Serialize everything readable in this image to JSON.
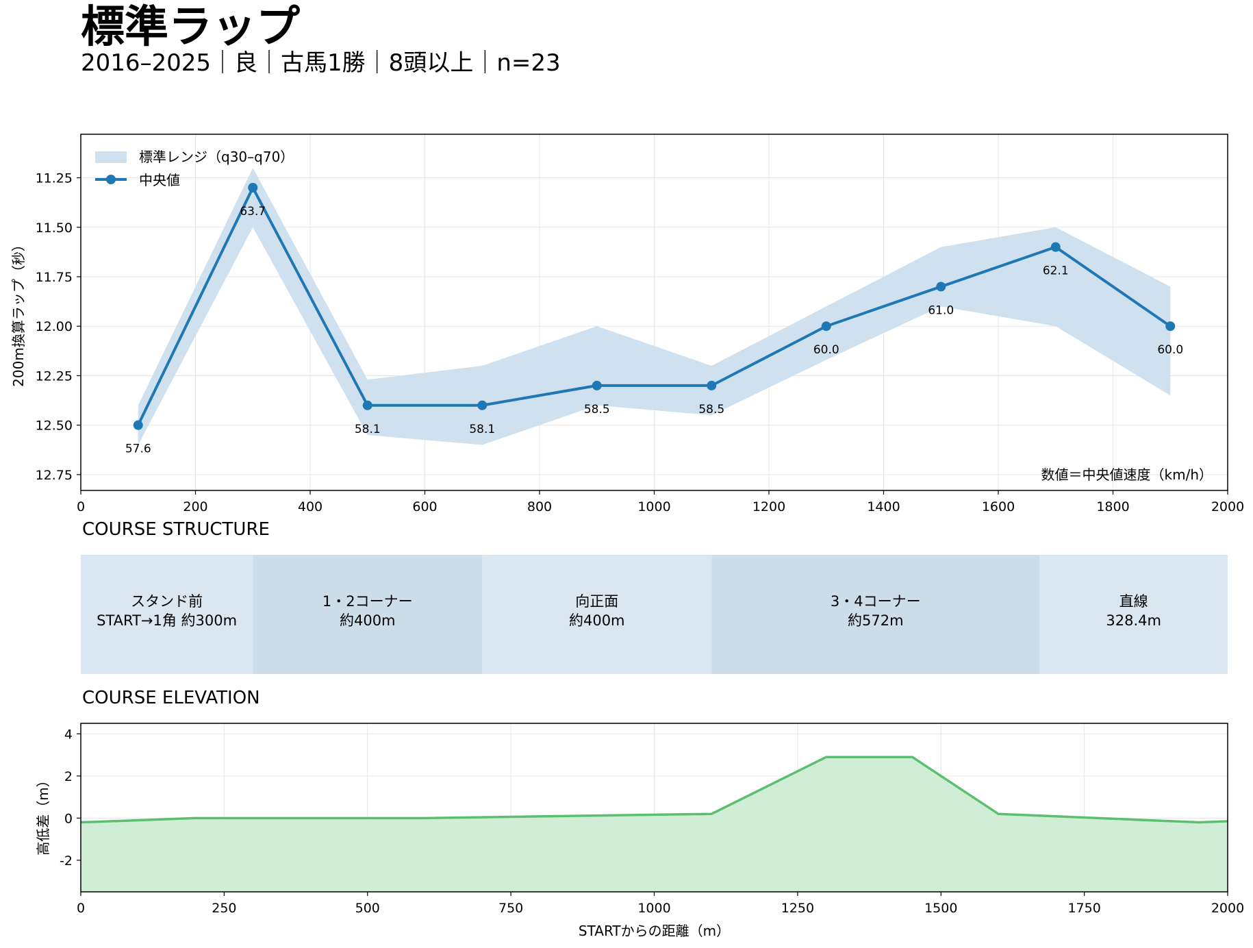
{
  "title": "標準ラップ",
  "subtitle": "2016–2025｜良｜古馬1勝｜8頭以上｜n=23",
  "chart_data": [
    {
      "type": "line",
      "xlim": [
        0,
        2000
      ],
      "ylim": [
        12.83,
        11.03
      ],
      "y_inverted": true,
      "xticks": [
        0,
        200,
        400,
        600,
        800,
        1000,
        1200,
        1400,
        1600,
        1800,
        2000
      ],
      "yticks": [
        11.25,
        11.5,
        11.75,
        12.0,
        12.25,
        12.5,
        12.75
      ],
      "ytick_labels": [
        "11.25",
        "11.50",
        "11.75",
        "12.00",
        "12.25",
        "12.50",
        "12.75"
      ],
      "ylabel": "200m換算ラップ（秒）",
      "xlabel": "",
      "grid": true,
      "legend": {
        "position": "top-left",
        "band_label": "標準レンジ（q30–q70）",
        "line_label": "中央値"
      },
      "band_color": "#cfe0ee",
      "line_color": "#1f77b4",
      "x": [
        100,
        300,
        500,
        700,
        900,
        1100,
        1300,
        1500,
        1700,
        1900
      ],
      "series": [
        {
          "name": "中央値",
          "values": [
            12.5,
            11.3,
            12.4,
            12.4,
            12.3,
            12.3,
            12.0,
            11.8,
            11.6,
            12.0
          ]
        },
        {
          "name": "q30",
          "values": [
            12.4,
            11.2,
            12.27,
            12.2,
            12.0,
            12.2,
            11.9,
            11.6,
            11.5,
            11.8
          ]
        },
        {
          "name": "q70",
          "values": [
            12.6,
            11.5,
            12.55,
            12.6,
            12.4,
            12.45,
            12.17,
            11.9,
            12.0,
            12.35
          ]
        }
      ],
      "data_labels": [
        "57.6",
        "63.7",
        "58.1",
        "58.1",
        "58.5",
        "58.5",
        "60.0",
        "61.0",
        "62.1",
        "60.0"
      ],
      "note": "数値＝中央値速度（km/h）"
    },
    {
      "type": "segments",
      "title": "COURSE STRUCTURE",
      "xlim": [
        0,
        2000
      ],
      "segments": [
        {
          "start": 0,
          "end": 300,
          "label": "スタンド前",
          "sub": "START→1角 約300m",
          "color": "#dae6f0"
        },
        {
          "start": 300,
          "end": 700,
          "label": "1・2コーナー",
          "sub": "約400m",
          "color": "#cddeeb"
        },
        {
          "start": 700,
          "end": 1100,
          "label": "向正面",
          "sub": "約400m",
          "color": "#dae6f0"
        },
        {
          "start": 1100,
          "end": 1672,
          "label": "3・4コーナー",
          "sub": "約572m",
          "color": "#cddeeb"
        },
        {
          "start": 1672,
          "end": 2000,
          "label": "直線",
          "sub": "328.4m",
          "color": "#dae6f0"
        }
      ]
    },
    {
      "type": "area",
      "title": "COURSE ELEVATION",
      "xlim": [
        0,
        2000
      ],
      "ylim": [
        -3.5,
        4.5
      ],
      "xticks": [
        0,
        250,
        500,
        750,
        1000,
        1250,
        1500,
        1750,
        2000
      ],
      "yticks": [
        4,
        2,
        0,
        -2
      ],
      "ytick_labels": [
        "4",
        "2",
        "0",
        "-2"
      ],
      "xlabel": "STARTからの距離（m）",
      "ylabel": "高低差（m）",
      "grid": true,
      "line_color": "#5cbf70",
      "fill_color": "#d0eed6",
      "x": [
        0,
        200,
        600,
        1100,
        1300,
        1450,
        1600,
        1950,
        2000
      ],
      "values": [
        -0.2,
        0.0,
        0.0,
        0.2,
        2.9,
        2.9,
        0.2,
        -0.2,
        -0.15
      ]
    }
  ]
}
